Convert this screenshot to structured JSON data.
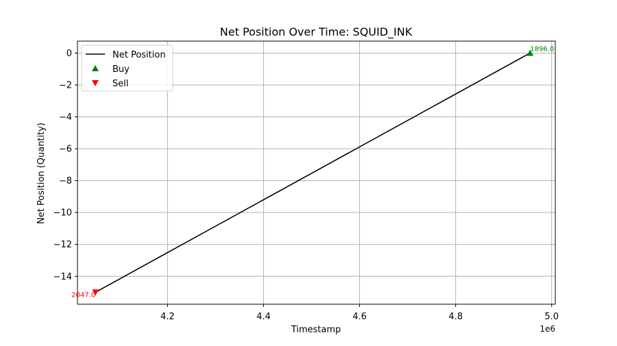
{
  "chart_data": {
    "type": "line",
    "title": "Net Position Over Time: SQUID_INK",
    "xlabel": "Timestamp",
    "ylabel": "Net Position (Quantity)",
    "x_offset_label": "1e6",
    "xlim": [
      4.0125,
      5.0075
    ],
    "ylim": [
      -15.75,
      0.75
    ],
    "x_ticks": [
      4.2,
      4.4,
      4.6,
      4.8,
      5.0
    ],
    "x_tick_labels": [
      "4.2",
      "4.4",
      "4.6",
      "4.8",
      "5.0"
    ],
    "y_ticks": [
      0,
      -2,
      -4,
      -6,
      -8,
      -10,
      -12,
      -14
    ],
    "y_tick_labels": [
      "0",
      "−2",
      "−4",
      "−6",
      "−8",
      "−10",
      "−12",
      "−14"
    ],
    "grid": true,
    "legend_position": "upper-left",
    "series": [
      {
        "name": "Net Position",
        "color": "#000000",
        "x": [
          4.05,
          4.955
        ],
        "y": [
          -15,
          0
        ]
      }
    ],
    "trades": [
      {
        "series": "Sell",
        "x": 4.05,
        "y": -15,
        "price_label": "2047.0",
        "color": "#ff0000"
      },
      {
        "series": "Buy",
        "x": 4.955,
        "y": 0,
        "price_label": "1896.0",
        "color": "#008000"
      }
    ],
    "legend": [
      {
        "label": "Net Position",
        "marker": "line",
        "color": "#000000"
      },
      {
        "label": "Buy",
        "marker": "triangle-up",
        "color": "#008000"
      },
      {
        "label": "Sell",
        "marker": "triangle-down",
        "color": "#ff0000"
      }
    ]
  }
}
